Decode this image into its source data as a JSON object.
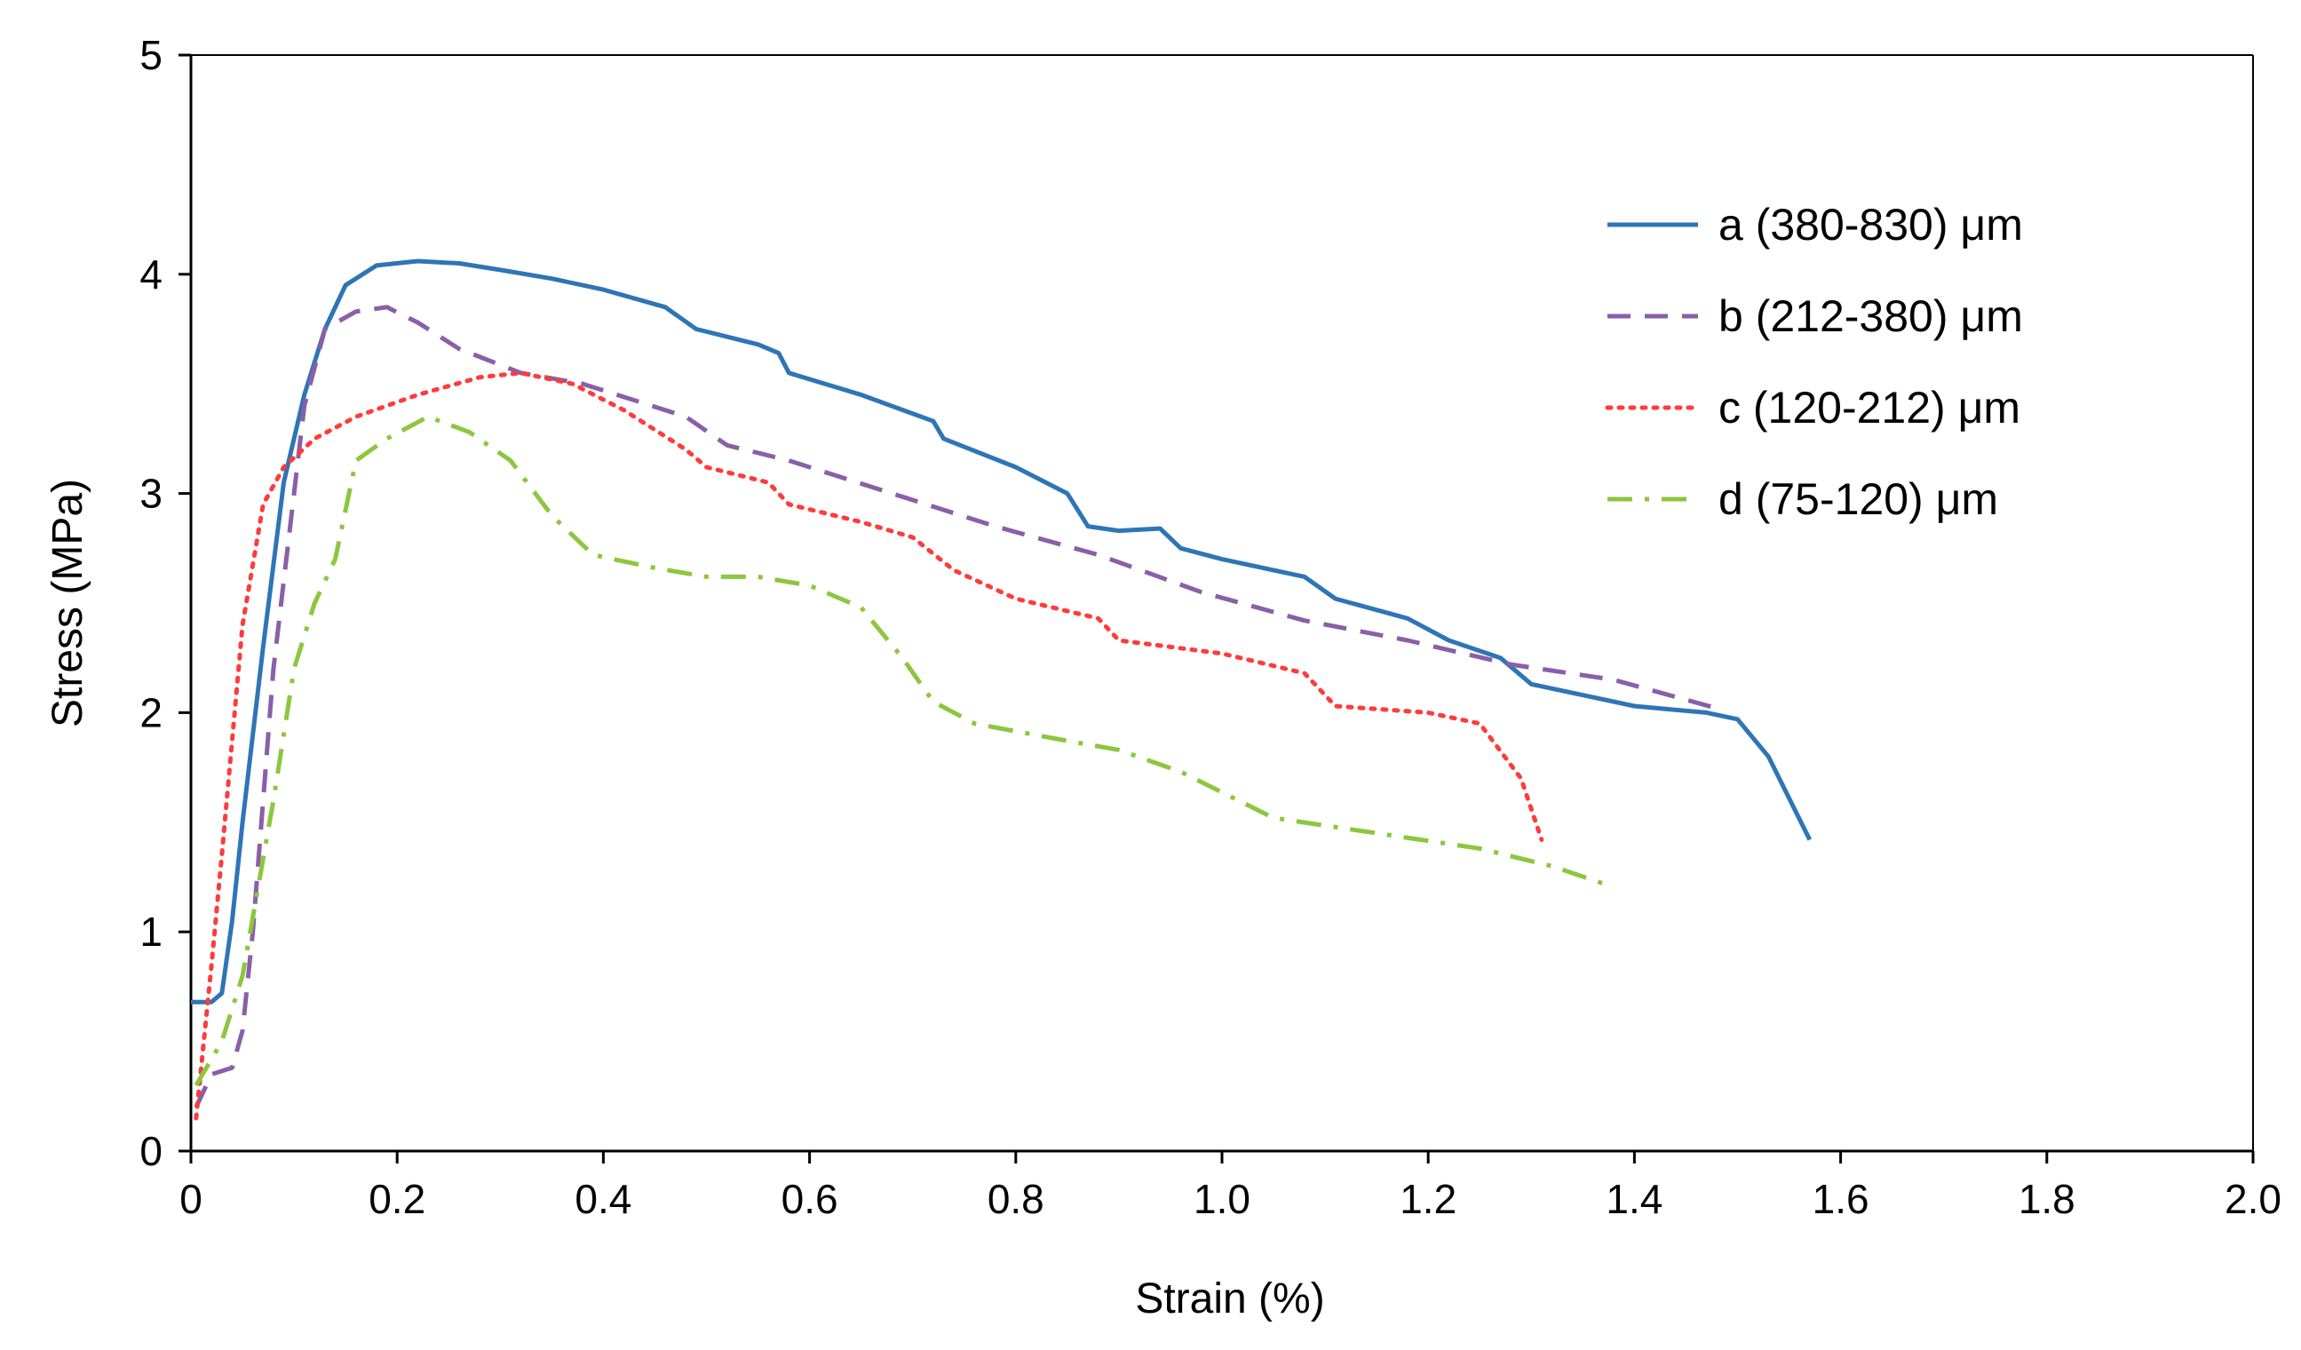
{
  "chart_data": {
    "type": "line",
    "title": "",
    "xlabel": "Strain (%)",
    "ylabel": "Stress (MPa)",
    "xlim": [
      0,
      2.0
    ],
    "ylim": [
      0,
      5
    ],
    "grid": false,
    "legend_position": "top-right",
    "x_ticks": [
      0,
      0.2,
      0.4,
      0.6,
      0.8,
      1.0,
      1.2,
      1.4,
      1.6,
      1.8,
      2.0
    ],
    "x_tick_labels": [
      "0",
      "0.2",
      "0.4",
      "0.6",
      "0.8",
      "1.0",
      "1.2",
      "1.4",
      "1.6",
      "1.8",
      "2.0"
    ],
    "y_ticks": [
      0,
      1,
      2,
      3,
      4,
      5
    ],
    "y_tick_labels": [
      "0",
      "1",
      "2",
      "3",
      "4",
      "5"
    ],
    "series": [
      {
        "name": "a (380-830) μm",
        "color": "#2e75b6",
        "style": "solid",
        "points": [
          [
            0,
            0.68
          ],
          [
            0.02,
            0.68
          ],
          [
            0.03,
            0.72
          ],
          [
            0.04,
            1.05
          ],
          [
            0.05,
            1.5
          ],
          [
            0.07,
            2.3
          ],
          [
            0.09,
            3.05
          ],
          [
            0.11,
            3.45
          ],
          [
            0.13,
            3.75
          ],
          [
            0.15,
            3.95
          ],
          [
            0.18,
            4.04
          ],
          [
            0.22,
            4.06
          ],
          [
            0.26,
            4.05
          ],
          [
            0.3,
            4.02
          ],
          [
            0.35,
            3.98
          ],
          [
            0.4,
            3.93
          ],
          [
            0.46,
            3.85
          ],
          [
            0.49,
            3.75
          ],
          [
            0.55,
            3.68
          ],
          [
            0.57,
            3.64
          ],
          [
            0.58,
            3.55
          ],
          [
            0.65,
            3.45
          ],
          [
            0.72,
            3.33
          ],
          [
            0.73,
            3.25
          ],
          [
            0.8,
            3.12
          ],
          [
            0.85,
            3.0
          ],
          [
            0.87,
            2.85
          ],
          [
            0.9,
            2.83
          ],
          [
            0.94,
            2.84
          ],
          [
            0.96,
            2.75
          ],
          [
            1.0,
            2.7
          ],
          [
            1.08,
            2.62
          ],
          [
            1.11,
            2.52
          ],
          [
            1.18,
            2.43
          ],
          [
            1.22,
            2.33
          ],
          [
            1.27,
            2.25
          ],
          [
            1.3,
            2.13
          ],
          [
            1.4,
            2.03
          ],
          [
            1.47,
            2.0
          ],
          [
            1.5,
            1.97
          ],
          [
            1.53,
            1.8
          ],
          [
            1.57,
            1.42
          ]
        ]
      },
      {
        "name": "b (212-380) μm",
        "color": "#8a5fa8",
        "style": "dashed",
        "points": [
          [
            0.005,
            0.2
          ],
          [
            0.02,
            0.35
          ],
          [
            0.04,
            0.38
          ],
          [
            0.05,
            0.55
          ],
          [
            0.06,
            1.0
          ],
          [
            0.07,
            1.6
          ],
          [
            0.08,
            2.2
          ],
          [
            0.1,
            3.0
          ],
          [
            0.11,
            3.4
          ],
          [
            0.13,
            3.75
          ],
          [
            0.16,
            3.83
          ],
          [
            0.19,
            3.85
          ],
          [
            0.22,
            3.78
          ],
          [
            0.26,
            3.66
          ],
          [
            0.32,
            3.55
          ],
          [
            0.38,
            3.5
          ],
          [
            0.48,
            3.35
          ],
          [
            0.52,
            3.22
          ],
          [
            0.58,
            3.15
          ],
          [
            0.68,
            3.0
          ],
          [
            0.78,
            2.85
          ],
          [
            0.88,
            2.72
          ],
          [
            0.98,
            2.55
          ],
          [
            1.08,
            2.42
          ],
          [
            1.18,
            2.33
          ],
          [
            1.28,
            2.22
          ],
          [
            1.38,
            2.15
          ],
          [
            1.48,
            2.02
          ]
        ]
      },
      {
        "name": "c (120-212) μm",
        "color": "#ff3b3b",
        "style": "dotted",
        "points": [
          [
            0.005,
            0.15
          ],
          [
            0.02,
            0.85
          ],
          [
            0.03,
            1.35
          ],
          [
            0.05,
            2.4
          ],
          [
            0.07,
            2.95
          ],
          [
            0.09,
            3.12
          ],
          [
            0.12,
            3.25
          ],
          [
            0.16,
            3.35
          ],
          [
            0.22,
            3.45
          ],
          [
            0.28,
            3.53
          ],
          [
            0.32,
            3.55
          ],
          [
            0.37,
            3.5
          ],
          [
            0.42,
            3.38
          ],
          [
            0.48,
            3.2
          ],
          [
            0.5,
            3.12
          ],
          [
            0.56,
            3.05
          ],
          [
            0.58,
            2.95
          ],
          [
            0.65,
            2.87
          ],
          [
            0.7,
            2.8
          ],
          [
            0.74,
            2.65
          ],
          [
            0.8,
            2.52
          ],
          [
            0.88,
            2.43
          ],
          [
            0.9,
            2.33
          ],
          [
            1.0,
            2.27
          ],
          [
            1.08,
            2.18
          ],
          [
            1.11,
            2.03
          ],
          [
            1.2,
            2.0
          ],
          [
            1.25,
            1.95
          ],
          [
            1.29,
            1.7
          ],
          [
            1.31,
            1.42
          ]
        ]
      },
      {
        "name": "d (75-120) μm",
        "color": "#8dc63f",
        "style": "dashdot",
        "points": [
          [
            0.005,
            0.3
          ],
          [
            0.03,
            0.5
          ],
          [
            0.05,
            0.8
          ],
          [
            0.08,
            1.6
          ],
          [
            0.1,
            2.2
          ],
          [
            0.12,
            2.5
          ],
          [
            0.14,
            2.7
          ],
          [
            0.16,
            3.15
          ],
          [
            0.19,
            3.25
          ],
          [
            0.21,
            3.3
          ],
          [
            0.23,
            3.35
          ],
          [
            0.27,
            3.28
          ],
          [
            0.31,
            3.15
          ],
          [
            0.35,
            2.9
          ],
          [
            0.39,
            2.72
          ],
          [
            0.45,
            2.66
          ],
          [
            0.5,
            2.62
          ],
          [
            0.55,
            2.62
          ],
          [
            0.6,
            2.58
          ],
          [
            0.65,
            2.48
          ],
          [
            0.69,
            2.25
          ],
          [
            0.72,
            2.05
          ],
          [
            0.76,
            1.95
          ],
          [
            0.84,
            1.88
          ],
          [
            0.9,
            1.83
          ],
          [
            0.96,
            1.73
          ],
          [
            1.05,
            1.52
          ],
          [
            1.15,
            1.45
          ],
          [
            1.25,
            1.38
          ],
          [
            1.32,
            1.3
          ],
          [
            1.37,
            1.22
          ]
        ]
      }
    ]
  }
}
